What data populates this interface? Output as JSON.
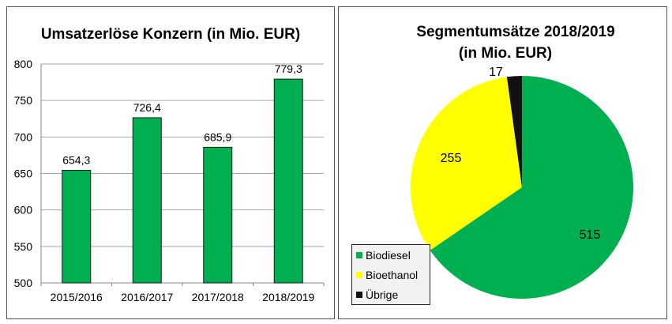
{
  "chart_data": [
    {
      "type": "bar",
      "title": "Umsatzerlöse Konzern (in Mio. EUR)",
      "categories": [
        "2015/2016",
        "2016/2017",
        "2017/2018",
        "2018/2019"
      ],
      "values": [
        654.3,
        726.4,
        685.9,
        779.3
      ],
      "value_labels": [
        "654,3",
        "726,4",
        "685,9",
        "779,3"
      ],
      "yticks": [
        500,
        550,
        600,
        650,
        700,
        750,
        800
      ],
      "ylim": [
        500,
        800
      ],
      "grid": true,
      "color": "#00b050"
    },
    {
      "type": "pie",
      "title_lines": [
        "Segmentumsätze 2018/2019",
        "(in Mio. EUR)"
      ],
      "slices": [
        {
          "label": "Biodiesel",
          "value": 515,
          "color": "#00b050"
        },
        {
          "label": "Bioethanol",
          "value": 255,
          "color": "#ffff00"
        },
        {
          "label": "Übrige",
          "value": 17,
          "color": "#111111"
        }
      ],
      "legend_position": "bottom-left"
    }
  ]
}
